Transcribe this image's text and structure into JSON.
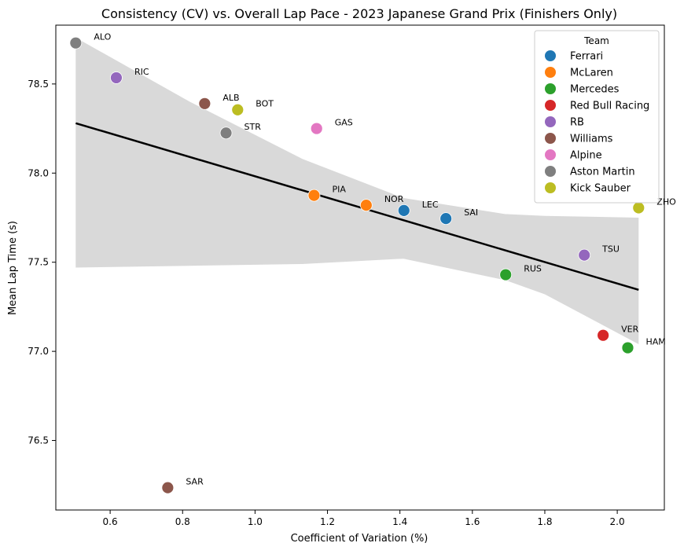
{
  "chart_data": {
    "type": "scatter",
    "title": "Consistency (CV) vs. Overall Lap Pace - 2023 Japanese Grand Prix (Finishers Only)",
    "xlabel": "Coefficient of Variation (%)",
    "ylabel": "Mean Lap Time (s)",
    "xlim": [
      0.45,
      2.13
    ],
    "ylim": [
      76.11,
      78.83
    ],
    "xticks": [
      0.6,
      0.8,
      1.0,
      1.2,
      1.4,
      1.6,
      1.8,
      2.0
    ],
    "xtick_labels": [
      "0.6",
      "0.8",
      "1.0",
      "1.2",
      "1.4",
      "1.6",
      "1.8",
      "2.0"
    ],
    "yticks": [
      76.5,
      77.0,
      77.5,
      78.0,
      78.5
    ],
    "ytick_labels": [
      "76.5",
      "77.0",
      "77.5",
      "78.0",
      "78.5"
    ],
    "grid": false,
    "legend": {
      "title": "Team",
      "placement": "top-right",
      "entries": [
        {
          "name": "Ferrari",
          "color": "#1f77b4"
        },
        {
          "name": "McLaren",
          "color": "#ff7f0e"
        },
        {
          "name": "Mercedes",
          "color": "#2ca02c"
        },
        {
          "name": "Red Bull Racing",
          "color": "#d62728"
        },
        {
          "name": "RB",
          "color": "#9467bd"
        },
        {
          "name": "Williams",
          "color": "#8c564b"
        },
        {
          "name": "Alpine",
          "color": "#e377c2"
        },
        {
          "name": "Aston Martin",
          "color": "#7f7f7f"
        },
        {
          "name": "Kick Sauber",
          "color": "#bcbd22"
        }
      ]
    },
    "points": [
      {
        "driver": "ALO",
        "team": "Aston Martin",
        "x": 0.505,
        "y": 78.73
      },
      {
        "driver": "RIC",
        "team": "RB",
        "x": 0.617,
        "y": 78.535
      },
      {
        "driver": "ALB",
        "team": "Williams",
        "x": 0.861,
        "y": 78.39
      },
      {
        "driver": "BOT",
        "team": "Kick Sauber",
        "x": 0.952,
        "y": 78.355
      },
      {
        "driver": "STR",
        "team": "Aston Martin",
        "x": 0.92,
        "y": 78.225
      },
      {
        "driver": "GAS",
        "team": "Alpine",
        "x": 1.17,
        "y": 78.25
      },
      {
        "driver": "PIA",
        "team": "McLaren",
        "x": 1.163,
        "y": 77.875
      },
      {
        "driver": "NOR",
        "team": "McLaren",
        "x": 1.307,
        "y": 77.82
      },
      {
        "driver": "LEC",
        "team": "Ferrari",
        "x": 1.411,
        "y": 77.79
      },
      {
        "driver": "SAI",
        "team": "Ferrari",
        "x": 1.527,
        "y": 77.745
      },
      {
        "driver": "ZHO",
        "team": "Kick Sauber",
        "x": 2.059,
        "y": 77.805
      },
      {
        "driver": "TSU",
        "team": "RB",
        "x": 1.909,
        "y": 77.54
      },
      {
        "driver": "RUS",
        "team": "Mercedes",
        "x": 1.692,
        "y": 77.43
      },
      {
        "driver": "VER",
        "team": "Red Bull Racing",
        "x": 1.961,
        "y": 77.09
      },
      {
        "driver": "HAM",
        "team": "Mercedes",
        "x": 2.029,
        "y": 77.02
      },
      {
        "driver": "SAR",
        "team": "Williams",
        "x": 0.759,
        "y": 76.235
      }
    ],
    "trendline": {
      "type": "linear-regression",
      "x": [
        0.505,
        2.059
      ],
      "y": [
        78.28,
        77.345
      ],
      "color": "#000000",
      "confidence_band_color": "#d9d9d9",
      "confidence_band": {
        "x": [
          0.505,
          0.82,
          1.13,
          1.41,
          1.69,
          1.8,
          2.059
        ],
        "upper": [
          78.76,
          78.4,
          78.08,
          77.86,
          77.77,
          77.76,
          77.75
        ],
        "lower": [
          77.47,
          77.48,
          77.49,
          77.52,
          77.4,
          77.32,
          77.04
        ]
      }
    }
  }
}
